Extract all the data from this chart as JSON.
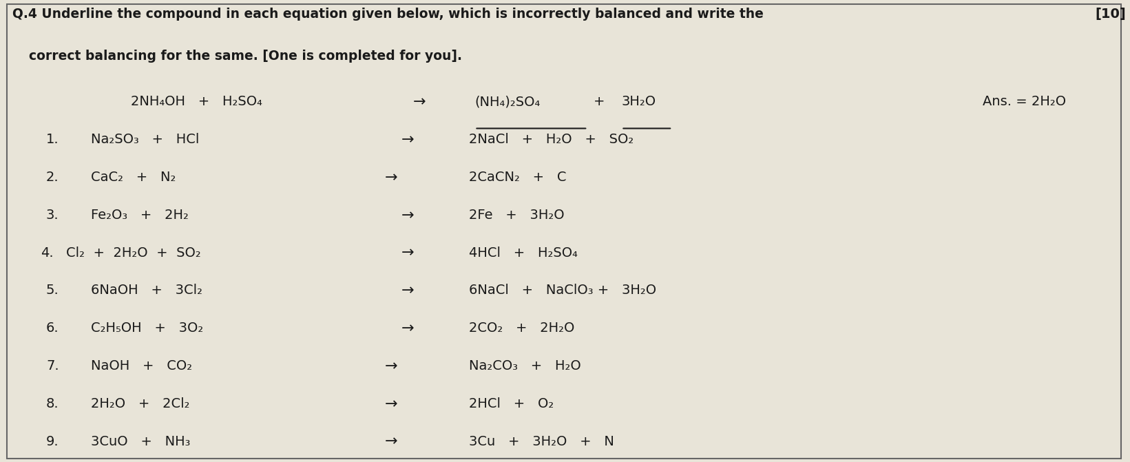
{
  "title_line1": "Q.4 Underline the compound in each equation given below, which is incorrectly balanced and write the",
  "title_line2": "correct balancing for the same. [One is completed for you].",
  "marks": "[10]",
  "bg_color": "#e8e4d8",
  "text_color": "#1a1a1a",
  "font_size": 14,
  "equations": [
    {
      "num": "1.",
      "lhs": "Na₂SO₃   +   HCl",
      "rhs": "2NaCl   +   H₂O   +   SO₂"
    },
    {
      "num": "2.",
      "lhs": "CaC₂   +   N₂",
      "rhs": "2CaCN₂   +   C"
    },
    {
      "num": "3.",
      "lhs": "Fe₂O₃   +   2H₂",
      "rhs": "2Fe   +   3H₂O"
    },
    {
      "num": "4.",
      "lhs": "Cl₂  +  2H₂O  +  SO₂",
      "rhs": "4HCl   +   H₂SO₄"
    },
    {
      "num": "5.",
      "lhs": "6NaOH   +   3Cl₂",
      "rhs": "6NaCl   +   NaClO₃ +   3H₂O"
    },
    {
      "num": "6.",
      "lhs": "C₂H₅OH   +   3O₂",
      "rhs": "2CO₂   +   2H₂O"
    },
    {
      "num": "7.",
      "lhs": "NaOH   +   CO₂",
      "rhs": "Na₂CO₃   +   H₂O"
    },
    {
      "num": "8.",
      "lhs": "2H₂O   +   2Cl₂",
      "rhs": "2HCl   +   O₂"
    },
    {
      "num": "9.",
      "lhs": "3CuO   +   NH₃",
      "rhs": "3Cu   +   3H₂O   +   N"
    }
  ]
}
